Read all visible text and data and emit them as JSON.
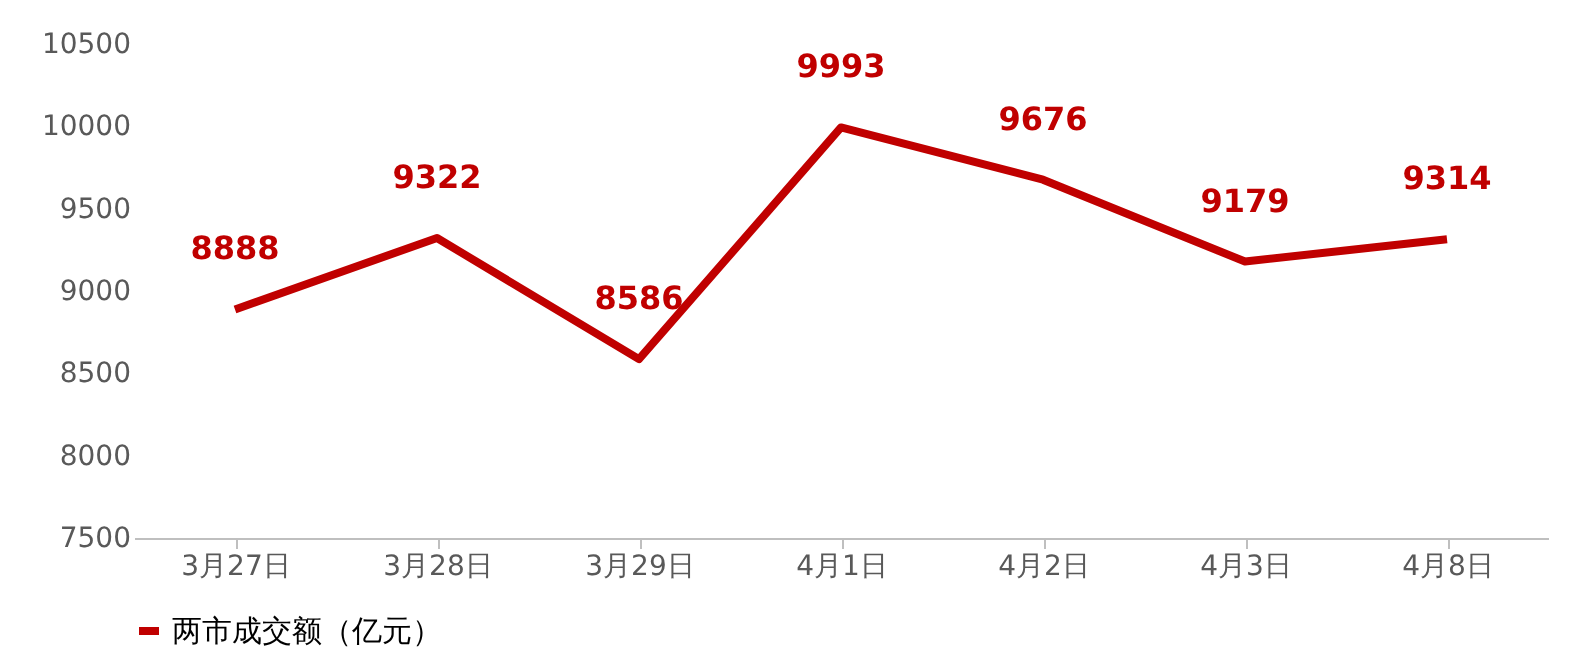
{
  "chart_data": {
    "type": "line",
    "categories": [
      "3月27日",
      "3月28日",
      "3月29日",
      "4月1日",
      "4月2日",
      "4月3日",
      "4月8日"
    ],
    "series": [
      {
        "name": "两市成交额（亿元）",
        "color": "#c00000",
        "values": [
          8888,
          9322,
          8586,
          9993,
          9676,
          9179,
          9314
        ]
      }
    ],
    "ylim": [
      7500,
      10500
    ],
    "yticks": [
      7500,
      8000,
      8500,
      9000,
      9500,
      10000,
      10500
    ],
    "grid": false,
    "legend": "bottom",
    "data_labels": true,
    "marker": "none",
    "line_style": "solid"
  }
}
